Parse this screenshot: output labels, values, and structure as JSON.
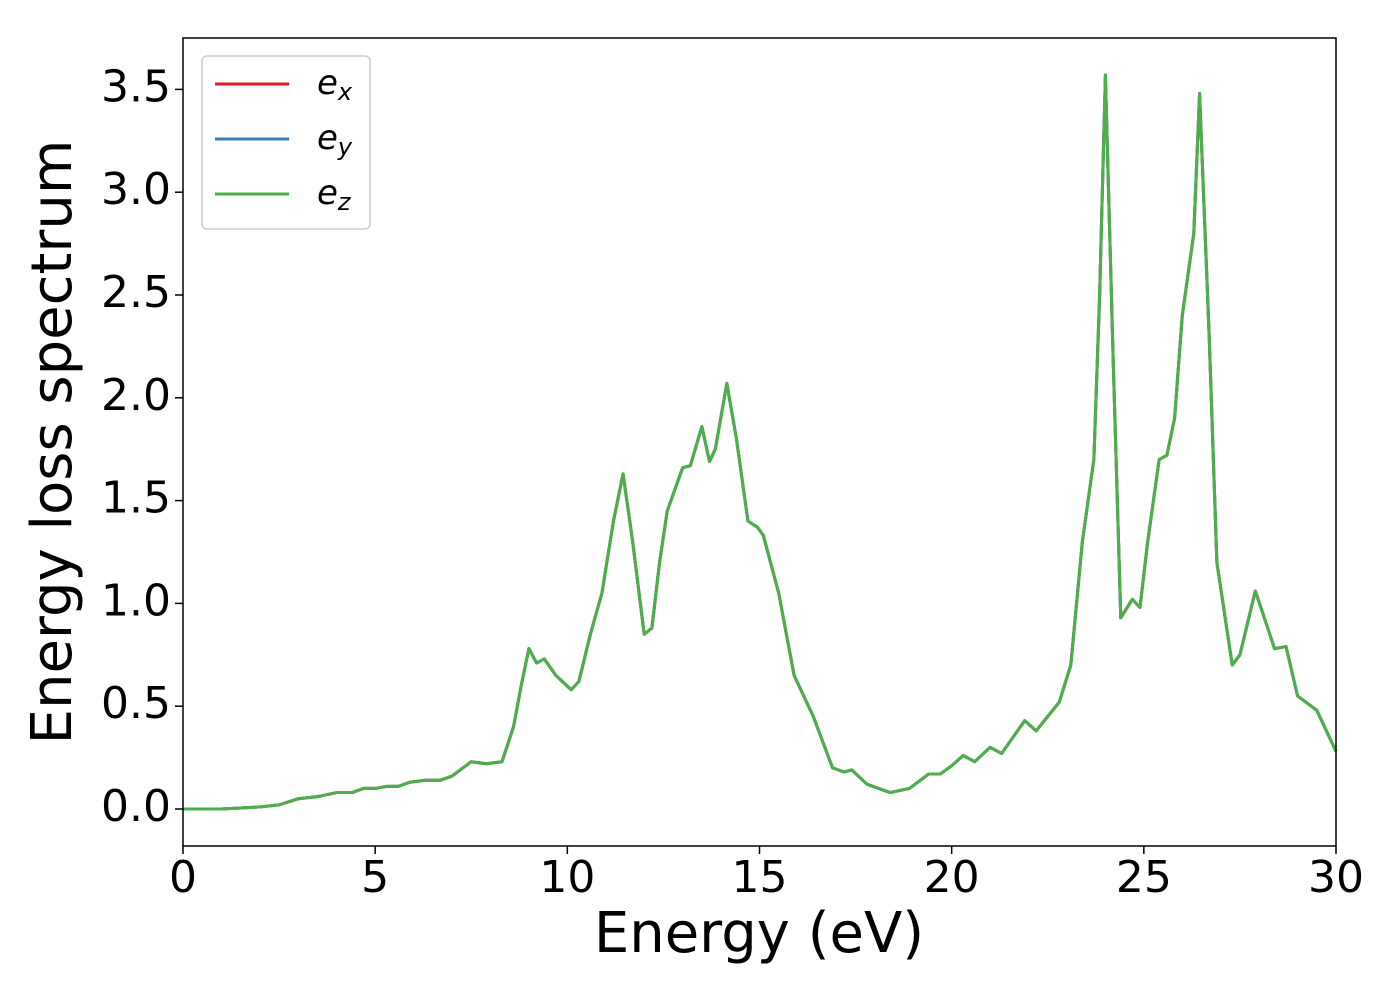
{
  "chart_data": {
    "type": "line",
    "x_label": "Energy (eV)",
    "y_label": "Energy loss spectrum",
    "x": [
      0,
      1,
      2,
      2.5,
      3,
      3.5,
      4,
      4.4,
      4.7,
      5,
      5.3,
      5.6,
      5.9,
      6.3,
      6.7,
      7,
      7.5,
      7.9,
      8.3,
      8.6,
      8.8,
      9.0,
      9.2,
      9.4,
      9.7,
      10.1,
      10.3,
      10.6,
      10.9,
      11.2,
      11.45,
      11.7,
      12.0,
      12.2,
      12.4,
      12.6,
      13.0,
      13.2,
      13.5,
      13.7,
      13.85,
      14.15,
      14.4,
      14.7,
      14.95,
      15.1,
      15.5,
      15.9,
      16.4,
      16.9,
      17.2,
      17.4,
      17.8,
      18.4,
      18.9,
      19.4,
      19.7,
      20.0,
      20.3,
      20.6,
      21.0,
      21.3,
      21.9,
      22.2,
      22.8,
      23.1,
      23.4,
      23.7,
      23.85,
      24.0,
      24.2,
      24.4,
      24.7,
      24.9,
      25.1,
      25.4,
      25.6,
      25.8,
      26.0,
      26.3,
      26.45,
      26.7,
      26.9,
      27.3,
      27.5,
      27.9,
      28.1,
      28.4,
      28.7,
      29.0,
      29.5,
      30.0
    ],
    "series": [
      {
        "name": "e_x",
        "color": "#e41a1c",
        "values": [
          0,
          0,
          0.01,
          0.02,
          0.05,
          0.06,
          0.08,
          0.08,
          0.1,
          0.1,
          0.11,
          0.11,
          0.13,
          0.14,
          0.14,
          0.16,
          0.23,
          0.22,
          0.23,
          0.4,
          0.6,
          0.78,
          0.71,
          0.73,
          0.65,
          0.58,
          0.62,
          0.85,
          1.05,
          1.4,
          1.63,
          1.3,
          0.85,
          0.88,
          1.2,
          1.45,
          1.66,
          1.67,
          1.86,
          1.69,
          1.75,
          2.07,
          1.8,
          1.4,
          1.37,
          1.33,
          1.05,
          0.65,
          0.45,
          0.2,
          0.18,
          0.19,
          0.12,
          0.08,
          0.1,
          0.17,
          0.17,
          0.21,
          0.26,
          0.23,
          0.3,
          0.27,
          0.43,
          0.38,
          0.52,
          0.7,
          1.3,
          1.7,
          2.5,
          3.57,
          2.2,
          0.93,
          1.02,
          0.98,
          1.3,
          1.7,
          1.72,
          1.9,
          2.4,
          2.8,
          3.48,
          2.3,
          1.2,
          0.7,
          0.75,
          1.06,
          0.95,
          0.78,
          0.79,
          0.55,
          0.48,
          0.28
        ]
      },
      {
        "name": "e_y",
        "color": "#377eb8",
        "values": [
          0,
          0,
          0.01,
          0.02,
          0.05,
          0.06,
          0.08,
          0.08,
          0.1,
          0.1,
          0.11,
          0.11,
          0.13,
          0.14,
          0.14,
          0.16,
          0.23,
          0.22,
          0.23,
          0.4,
          0.6,
          0.78,
          0.71,
          0.73,
          0.65,
          0.58,
          0.62,
          0.85,
          1.05,
          1.4,
          1.63,
          1.3,
          0.85,
          0.88,
          1.2,
          1.45,
          1.66,
          1.67,
          1.86,
          1.69,
          1.75,
          2.07,
          1.8,
          1.4,
          1.37,
          1.33,
          1.05,
          0.65,
          0.45,
          0.2,
          0.18,
          0.19,
          0.12,
          0.08,
          0.1,
          0.17,
          0.17,
          0.21,
          0.26,
          0.23,
          0.3,
          0.27,
          0.43,
          0.38,
          0.52,
          0.7,
          1.3,
          1.7,
          2.5,
          3.57,
          2.2,
          0.93,
          1.02,
          0.98,
          1.3,
          1.7,
          1.72,
          1.9,
          2.4,
          2.8,
          3.48,
          2.3,
          1.2,
          0.7,
          0.75,
          1.06,
          0.95,
          0.78,
          0.79,
          0.55,
          0.48,
          0.28
        ]
      },
      {
        "name": "e_z",
        "color": "#4daf4a",
        "values": [
          0,
          0,
          0.01,
          0.02,
          0.05,
          0.06,
          0.08,
          0.08,
          0.1,
          0.1,
          0.11,
          0.11,
          0.13,
          0.14,
          0.14,
          0.16,
          0.23,
          0.22,
          0.23,
          0.4,
          0.6,
          0.78,
          0.71,
          0.73,
          0.65,
          0.58,
          0.62,
          0.85,
          1.05,
          1.4,
          1.63,
          1.3,
          0.85,
          0.88,
          1.2,
          1.45,
          1.66,
          1.67,
          1.86,
          1.69,
          1.75,
          2.07,
          1.8,
          1.4,
          1.37,
          1.33,
          1.05,
          0.65,
          0.45,
          0.2,
          0.18,
          0.19,
          0.12,
          0.08,
          0.1,
          0.17,
          0.17,
          0.21,
          0.26,
          0.23,
          0.3,
          0.27,
          0.43,
          0.38,
          0.52,
          0.7,
          1.3,
          1.7,
          2.5,
          3.57,
          2.2,
          0.93,
          1.02,
          0.98,
          1.3,
          1.7,
          1.72,
          1.9,
          2.4,
          2.8,
          3.48,
          2.3,
          1.2,
          0.7,
          0.75,
          1.06,
          0.95,
          0.78,
          0.79,
          0.55,
          0.48,
          0.28
        ]
      }
    ],
    "xlim": [
      0,
      30
    ],
    "xticks": [
      0,
      5,
      10,
      15,
      20,
      25,
      30
    ],
    "ylim": [
      -0.18,
      3.75
    ],
    "yticks": [
      {
        "value": 0,
        "label": "0.0"
      },
      0.5,
      {
        "value": 1,
        "label": "1.0"
      },
      1.5,
      {
        "value": 2,
        "label": "2.0"
      },
      2.5,
      {
        "value": 3,
        "label": "3.0"
      },
      3.5
    ],
    "legend": "upper left",
    "grid": false
  }
}
